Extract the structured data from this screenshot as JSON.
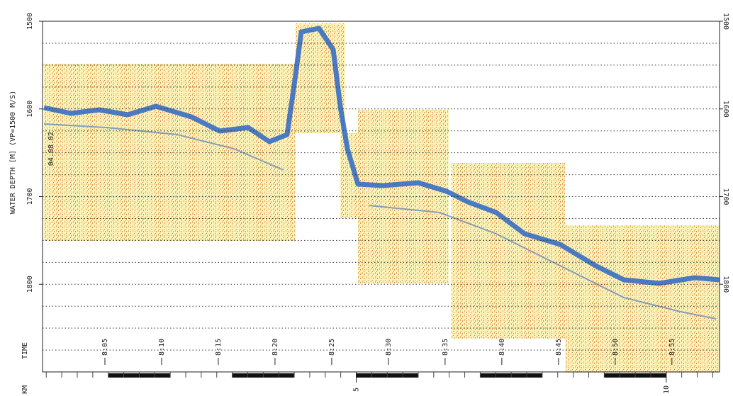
{
  "chart_data": {
    "type": "seismic-profile",
    "ylabel": "WATER DEPTH [M] (VP=1500 M/S)",
    "ylim": [
      1500,
      1900
    ],
    "yticks": [
      1500,
      1600,
      1700,
      1800
    ],
    "ygrid": [
      1525,
      1550,
      1575,
      1600,
      1625,
      1650,
      1675,
      1700,
      1725,
      1750,
      1775,
      1800,
      1825,
      1850,
      1875
    ],
    "date": "04.08.02",
    "time_label": "TIME",
    "time_lim": [
      479.5,
      539.2
    ],
    "time_ticks": [
      {
        "value": 485,
        "label": "8:05"
      },
      {
        "value": 490,
        "label": "8:10"
      },
      {
        "value": 495,
        "label": "8:15"
      },
      {
        "value": 500,
        "label": "8:20"
      },
      {
        "value": 505,
        "label": "8:25"
      },
      {
        "value": 510,
        "label": "8:30"
      },
      {
        "value": 515,
        "label": "8:35"
      },
      {
        "value": 520,
        "label": "8:40"
      },
      {
        "value": 525,
        "label": "8:45"
      },
      {
        "value": 530,
        "label": "8:50"
      },
      {
        "value": 535,
        "label": "8:55"
      }
    ],
    "km_label": "KM",
    "km_lim": [
      -0.06,
      10.86
    ],
    "km_ticks": [
      5,
      10
    ]
  }
}
